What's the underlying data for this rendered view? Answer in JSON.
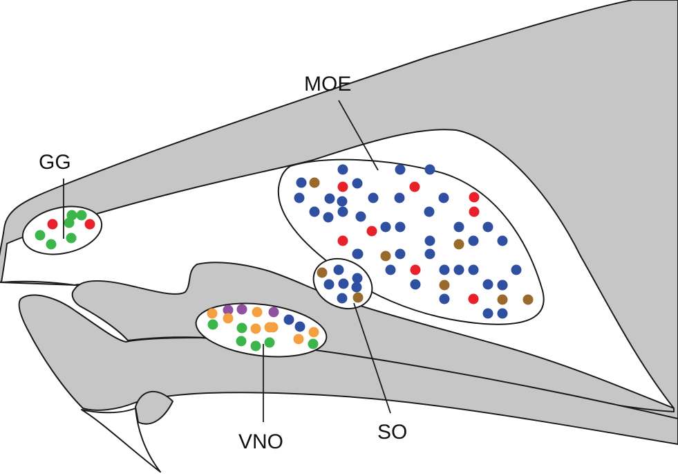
{
  "labels": {
    "gg": "GG",
    "moe": "MOE",
    "so": "SO",
    "vno": "VNO"
  },
  "colors": {
    "tissue": "#c6c6c6",
    "outline": "#1a1a1a",
    "cell_blue": "#2f4fa0",
    "cell_red": "#e8202a",
    "cell_brown": "#9a6a2c",
    "cell_green": "#3cb54a",
    "cell_orange": "#f5a040",
    "cell_purple": "#8e52a0"
  },
  "organs": [
    {
      "key": "gg",
      "cell_colors": [
        "green",
        "red",
        "green",
        "green",
        "red",
        "green",
        "green",
        "green"
      ]
    },
    {
      "key": "vno",
      "cell_colors": [
        "purple",
        "purple",
        "purple",
        "orange",
        "orange",
        "orange",
        "blue",
        "orange",
        "green",
        "blue",
        "green",
        "orange",
        "orange",
        "orange",
        "green",
        "green",
        "green",
        "green",
        "orange"
      ]
    },
    {
      "key": "so",
      "cell_colors": [
        "brown",
        "blue",
        "blue",
        "blue",
        "blue",
        "blue",
        "blue",
        "brown"
      ]
    },
    {
      "key": "moe",
      "cell_colors": [
        "blue",
        "blue",
        "blue",
        "blue",
        "brown",
        "red",
        "blue",
        "red",
        "blue",
        "blue",
        "blue",
        "blue",
        "blue",
        "blue",
        "red",
        "blue",
        "blue",
        "blue",
        "blue",
        "blue",
        "red",
        "blue",
        "blue",
        "red",
        "blue",
        "blue",
        "blue",
        "red",
        "blue",
        "blue",
        "brown",
        "blue",
        "blue",
        "blue",
        "blue",
        "red",
        "blue",
        "blue",
        "brown",
        "blue",
        "blue",
        "brown",
        "blue",
        "red",
        "blue",
        "blue",
        "red",
        "brown",
        "brown",
        "blue",
        "blue",
        "blue",
        "blue"
      ]
    }
  ]
}
